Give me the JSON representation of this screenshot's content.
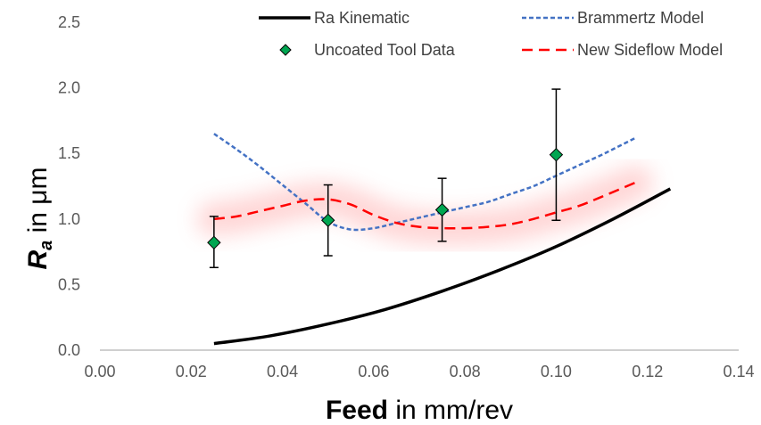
{
  "chart_data": {
    "type": "line",
    "xlabel": {
      "bold": "Feed",
      "rest": " in mm/rev"
    },
    "ylabel": {
      "bold_main": "R",
      "bold_sub": "a",
      "rest": " in μm"
    },
    "xlim": [
      0,
      0.14
    ],
    "ylim": [
      0,
      2.5
    ],
    "x_ticks": [
      "0.00",
      "0.02",
      "0.04",
      "0.06",
      "0.08",
      "0.10",
      "0.12",
      "0.14"
    ],
    "y_ticks": [
      "0.0",
      "0.5",
      "1.0",
      "1.5",
      "2.0",
      "2.5"
    ],
    "grid": false,
    "legend_position": "top",
    "series": [
      {
        "name": "Ra Kinematic",
        "style": "solid",
        "color": "#000000",
        "x": [
          0.025,
          0.0375,
          0.05,
          0.0625,
          0.075,
          0.0875,
          0.1,
          0.1125,
          0.125
        ],
        "y": [
          0.05,
          0.11,
          0.2,
          0.31,
          0.45,
          0.61,
          0.79,
          1.0,
          1.23
        ]
      },
      {
        "name": "Brammertz Model",
        "style": "dotted",
        "color": "#4472C4",
        "x": [
          0.025,
          0.03,
          0.035,
          0.04,
          0.045,
          0.05,
          0.055,
          0.06,
          0.065,
          0.07,
          0.075,
          0.08,
          0.085,
          0.09,
          0.095,
          0.1,
          0.105,
          0.11,
          0.1175
        ],
        "y": [
          1.65,
          1.53,
          1.4,
          1.26,
          1.12,
          0.98,
          0.92,
          0.93,
          0.97,
          1.01,
          1.05,
          1.09,
          1.13,
          1.19,
          1.25,
          1.33,
          1.41,
          1.49,
          1.62
        ]
      },
      {
        "name": "New Sideflow Model",
        "style": "dashed",
        "color": "#FF0000",
        "x": [
          0.025,
          0.03,
          0.035,
          0.04,
          0.045,
          0.05,
          0.055,
          0.06,
          0.065,
          0.07,
          0.075,
          0.08,
          0.085,
          0.09,
          0.095,
          0.1,
          0.105,
          0.11,
          0.1175
        ],
        "y": [
          1.0,
          1.02,
          1.06,
          1.1,
          1.14,
          1.15,
          1.11,
          1.03,
          0.97,
          0.94,
          0.93,
          0.93,
          0.94,
          0.96,
          1.0,
          1.05,
          1.1,
          1.17,
          1.28
        ]
      },
      {
        "name": "Uncoated Tool Data",
        "style": "markers",
        "color": "#00A651",
        "x": [
          0.025,
          0.05,
          0.075,
          0.1
        ],
        "y": [
          0.82,
          0.99,
          1.07,
          1.49
        ],
        "err_low": [
          0.63,
          0.72,
          0.83,
          0.99
        ],
        "err_high": [
          1.02,
          1.26,
          1.31,
          1.99
        ]
      }
    ]
  }
}
